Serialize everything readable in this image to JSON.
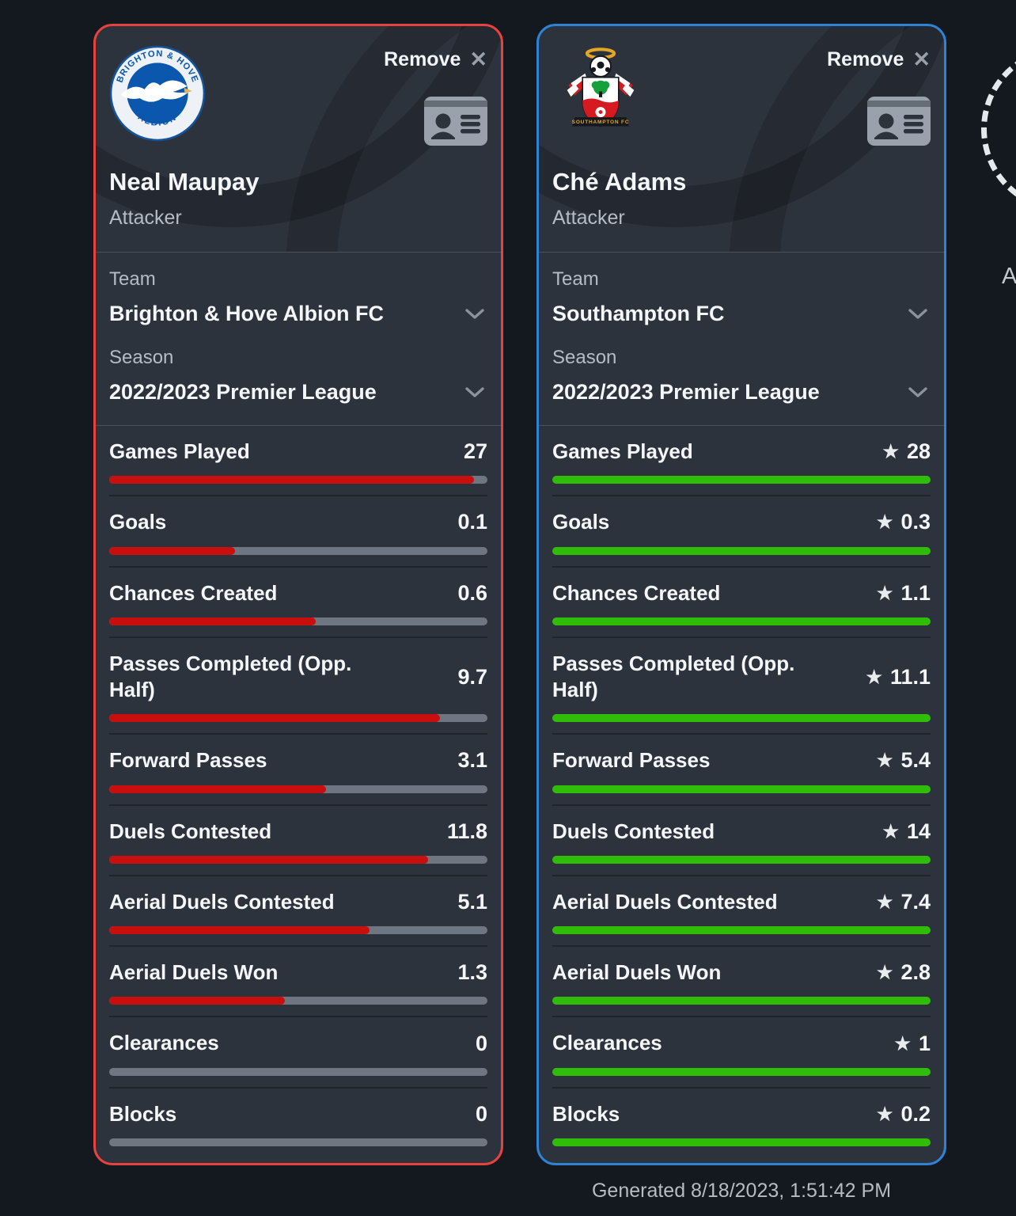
{
  "colors": {
    "page_bg": "#14181f",
    "card_bg": "#2d333d",
    "accent_left": "#e8423e",
    "accent_right": "#2f82d4",
    "bar_left": "#c90e0e",
    "bar_right": "#30bd08",
    "bar_track": "#6e7681"
  },
  "players": [
    {
      "name": "Neal Maupay",
      "position": "Attacker",
      "remove_label": "Remove",
      "team_label": "Team",
      "team": "Brighton & Hove Albion FC",
      "season_label": "Season",
      "season": "2022/2023 Premier League",
      "badge": "brighton-hove-albion-crest"
    },
    {
      "name": "Ché Adams",
      "position": "Attacker",
      "remove_label": "Remove",
      "team_label": "Team",
      "team": "Southampton FC",
      "season_label": "Season",
      "season": "2022/2023 Premier League",
      "badge": "southampton-fc-crest"
    }
  ],
  "stats": [
    {
      "label": "Games Played",
      "values": [
        27,
        28
      ],
      "winner": 1
    },
    {
      "label": "Goals",
      "values": [
        0.1,
        0.3
      ],
      "winner": 1
    },
    {
      "label": "Chances Created",
      "values": [
        0.6,
        1.1
      ],
      "winner": 1
    },
    {
      "label": "Passes Completed (Opp. Half)",
      "values": [
        9.7,
        11.1
      ],
      "winner": 1
    },
    {
      "label": "Forward Passes",
      "values": [
        3.1,
        5.4
      ],
      "winner": 1
    },
    {
      "label": "Duels Contested",
      "values": [
        11.8,
        14
      ],
      "winner": 1
    },
    {
      "label": "Aerial Duels Contested",
      "values": [
        5.1,
        7.4
      ],
      "winner": 1
    },
    {
      "label": "Aerial Duels Won",
      "values": [
        1.3,
        2.8
      ],
      "winner": 1
    },
    {
      "label": "Clearances",
      "values": [
        0,
        1
      ],
      "winner": 1
    },
    {
      "label": "Blocks",
      "values": [
        0,
        0.2
      ],
      "winner": 1
    }
  ],
  "add_slot": {
    "partial_label": "A"
  },
  "footer": {
    "generated": "Generated 8/18/2023, 1:51:42 PM"
  }
}
